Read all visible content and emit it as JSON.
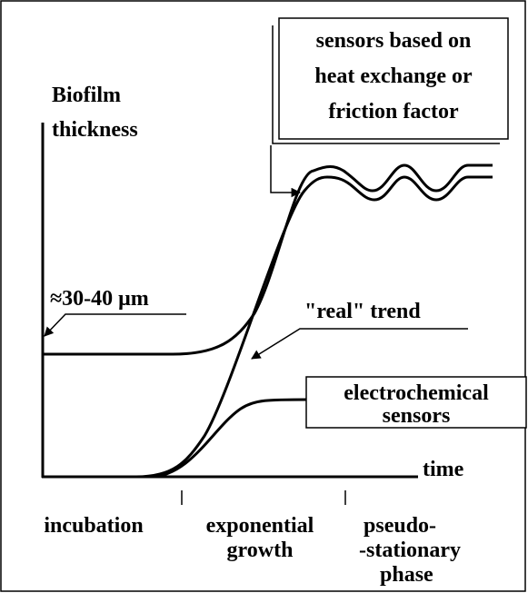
{
  "axis": {
    "y_label": [
      "Biofilm",
      "thickness"
    ],
    "x_label": "time"
  },
  "annotations": {
    "sensors_heat": [
      "sensors based on",
      "heat exchange or",
      "friction factor"
    ],
    "thickness_value": "≈30-40 μm",
    "real_trend": "\"real\"  trend",
    "electrochemical": [
      "electrochemical",
      "sensors"
    ]
  },
  "phases": [
    {
      "label": [
        "incubation"
      ]
    },
    {
      "label": [
        "exponential",
        "growth"
      ]
    },
    {
      "label": [
        "pseudo-",
        "-stationary",
        "phase"
      ]
    }
  ]
}
